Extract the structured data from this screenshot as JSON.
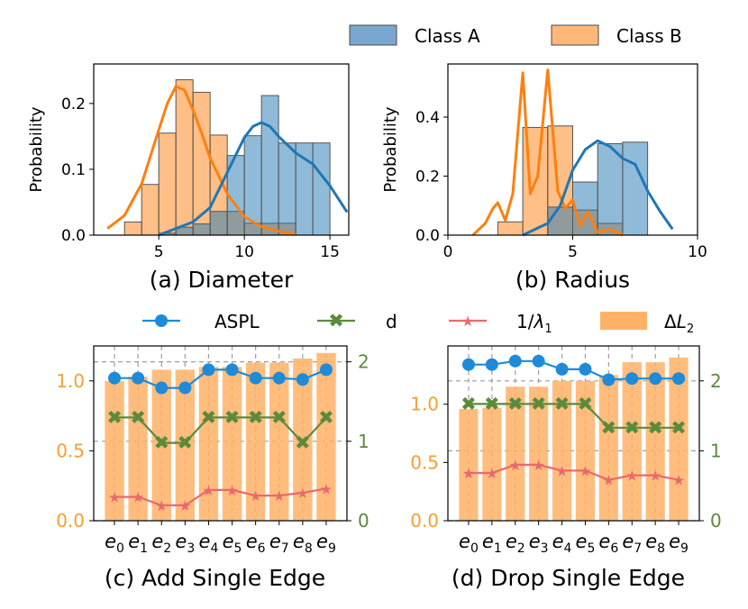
{
  "colors": {
    "class_a": "#1f77b4",
    "class_a_fill": "#7aa7cf",
    "class_b": "#ff7f0e",
    "class_b_fill": "#ffb87a",
    "aspl": "#1f8ad8",
    "d": "#5c8a3c",
    "inv_lambda": "#e8696e",
    "delta_l2": "#ffb266",
    "left_axis_label": "#f5a032",
    "right_axis_label": "#5c8a3c"
  },
  "top_legend": {
    "class_a": "Class A",
    "class_b": "Class B"
  },
  "mid_legend": {
    "aspl": "ASPL",
    "d": "d",
    "inv_lambda_prefix": "1/",
    "inv_lambda_symbol": "λ",
    "inv_lambda_sub": "1",
    "delta_l2_prefix": "Δ",
    "delta_l2_symbol": "L",
    "delta_l2_sub": "2"
  },
  "edge_labels": [
    "e0",
    "e1",
    "e2",
    "e3",
    "e4",
    "e5",
    "e6",
    "e7",
    "e8",
    "e9"
  ],
  "chart_data": [
    {
      "id": "a",
      "type": "histogram",
      "title": "(a) Diameter",
      "ylabel": "Probability",
      "xlim": [
        1.2,
        16.1
      ],
      "ylim": [
        0,
        0.26
      ],
      "xticks": [
        5,
        10,
        15
      ],
      "yticks": [
        0.0,
        0.1,
        0.2
      ],
      "xtick_labels": [
        "5",
        "10",
        "15"
      ],
      "ytick_labels": [
        "0.0",
        "0.1",
        "0.2"
      ],
      "series": [
        {
          "name": "Class B",
          "bin_edges": [
            3,
            4,
            5,
            6,
            7,
            8,
            9,
            10,
            11,
            12,
            13,
            14,
            15
          ],
          "values": [
            0.02,
            0.077,
            0.155,
            0.236,
            0.217,
            0.152,
            0.036,
            0.018,
            0.018,
            0.018,
            0.0,
            0.0
          ],
          "kde_x": [
            2,
            3,
            4,
            5,
            5.5,
            6,
            6.5,
            7,
            7.5,
            8,
            9,
            10,
            11,
            12,
            13
          ],
          "kde_y": [
            0.01,
            0.03,
            0.078,
            0.16,
            0.2,
            0.226,
            0.22,
            0.19,
            0.155,
            0.117,
            0.063,
            0.028,
            0.013,
            0.006,
            0.001
          ]
        },
        {
          "name": "Class A",
          "bin_edges": [
            4,
            5,
            6,
            7,
            8,
            9,
            10,
            11,
            12,
            13,
            14,
            15
          ],
          "values": [
            0.0,
            0.003,
            0.012,
            0.017,
            0.036,
            0.121,
            0.151,
            0.212,
            0.14,
            0.14,
            0.14
          ],
          "kde_x": [
            5,
            6,
            7,
            8,
            9,
            10,
            10.5,
            11,
            11.5,
            12,
            13,
            14,
            15,
            16
          ],
          "kde_y": [
            0.0,
            0.01,
            0.02,
            0.042,
            0.095,
            0.148,
            0.165,
            0.171,
            0.165,
            0.15,
            0.125,
            0.108,
            0.075,
            0.035
          ]
        }
      ]
    },
    {
      "id": "b",
      "type": "histogram",
      "title": "(b) Radius",
      "ylabel": "Probability",
      "xlim": [
        0,
        10
      ],
      "ylim": [
        0,
        0.58
      ],
      "xticks": [
        0,
        5,
        10
      ],
      "yticks": [
        0.0,
        0.2,
        0.4
      ],
      "xtick_labels": [
        "0",
        "5",
        "10"
      ],
      "ytick_labels": [
        "0.0",
        "0.2",
        "0.4"
      ],
      "series": [
        {
          "name": "Class B",
          "bin_edges": [
            2,
            3,
            4,
            5,
            6,
            7
          ],
          "values": [
            0.045,
            0.365,
            0.37,
            0.085,
            0.04
          ],
          "kde_x": [
            1,
            1.5,
            1.8,
            2.0,
            2.3,
            2.6,
            3.0,
            3.3,
            3.6,
            4.0,
            4.4,
            4.7,
            5.0,
            5.3,
            5.6,
            6.0,
            6.5,
            7.0
          ],
          "kde_y": [
            0.0,
            0.04,
            0.09,
            0.11,
            0.05,
            0.14,
            0.55,
            0.14,
            0.2,
            0.56,
            0.15,
            0.09,
            0.12,
            0.03,
            0.08,
            0.01,
            0.02,
            0.0
          ]
        },
        {
          "name": "Class A",
          "bin_edges": [
            3,
            4,
            5,
            6,
            7,
            8
          ],
          "values": [
            0.0,
            0.095,
            0.18,
            0.31,
            0.315
          ],
          "kde_x": [
            3,
            4,
            4.5,
            5,
            5.5,
            6,
            6.5,
            7,
            7.5,
            8,
            8.5,
            9
          ],
          "kde_y": [
            0.0,
            0.04,
            0.1,
            0.22,
            0.29,
            0.32,
            0.3,
            0.26,
            0.24,
            0.15,
            0.08,
            0.02
          ]
        }
      ]
    },
    {
      "id": "c",
      "type": "bar+line",
      "title": "(c) Add Single Edge",
      "left_ylim": [
        0,
        1.25
      ],
      "right_ylim": [
        0,
        2.2
      ],
      "left_yticks": [
        0.0,
        0.5,
        1.0
      ],
      "left_ytick_labels": [
        "0.0",
        "0.5",
        "1.0"
      ],
      "right_yticks": [
        0,
        1,
        2
      ],
      "right_ytick_labels": [
        "0",
        "1",
        "2"
      ],
      "categories": [
        "e0",
        "e1",
        "e2",
        "e3",
        "e4",
        "e5",
        "e6",
        "e7",
        "e8",
        "e9"
      ],
      "series": [
        {
          "name": "ΔL2",
          "axis": "left",
          "kind": "bar",
          "values": [
            1.0,
            1.03,
            1.08,
            1.08,
            1.1,
            1.1,
            1.13,
            1.13,
            1.16,
            1.2
          ]
        },
        {
          "name": "ASPL",
          "axis": "left",
          "kind": "line",
          "values": [
            1.02,
            1.02,
            0.95,
            0.95,
            1.08,
            1.08,
            1.02,
            1.02,
            1.01,
            1.08
          ]
        },
        {
          "name": "d",
          "axis": "right",
          "kind": "line",
          "values": [
            1.3,
            1.3,
            0.98,
            0.98,
            1.3,
            1.3,
            1.3,
            1.3,
            0.98,
            1.3
          ]
        },
        {
          "name": "1/λ1",
          "axis": "left",
          "kind": "line",
          "values": [
            0.17,
            0.17,
            0.11,
            0.11,
            0.22,
            0.22,
            0.18,
            0.18,
            0.2,
            0.23
          ]
        }
      ]
    },
    {
      "id": "d",
      "type": "bar+line",
      "title": "(d) Drop Single Edge",
      "left_ylim": [
        0,
        1.5
      ],
      "right_ylim": [
        0,
        2.5
      ],
      "left_yticks": [
        0.0,
        0.5,
        1.0
      ],
      "left_ytick_labels": [
        "0.0",
        "0.5",
        "1.0"
      ],
      "right_yticks": [
        0,
        1,
        2
      ],
      "right_ytick_labels": [
        "0",
        "1",
        "2"
      ],
      "categories": [
        "e0",
        "e1",
        "e2",
        "e3",
        "e4",
        "e5",
        "e6",
        "e7",
        "e8",
        "e9"
      ],
      "series": [
        {
          "name": "ΔL2",
          "axis": "left",
          "kind": "bar",
          "values": [
            0.96,
            0.97,
            1.15,
            1.15,
            1.2,
            1.2,
            1.25,
            1.36,
            1.36,
            1.4
          ]
        },
        {
          "name": "ASPL",
          "axis": "left",
          "kind": "line",
          "values": [
            1.34,
            1.34,
            1.37,
            1.37,
            1.3,
            1.3,
            1.21,
            1.22,
            1.22,
            1.22
          ]
        },
        {
          "name": "d",
          "axis": "right",
          "kind": "line",
          "values": [
            1.67,
            1.67,
            1.67,
            1.67,
            1.67,
            1.67,
            1.33,
            1.33,
            1.33,
            1.33
          ]
        },
        {
          "name": "1/λ1",
          "axis": "left",
          "kind": "line",
          "values": [
            0.41,
            0.41,
            0.48,
            0.48,
            0.43,
            0.43,
            0.35,
            0.39,
            0.39,
            0.35
          ]
        }
      ]
    }
  ]
}
